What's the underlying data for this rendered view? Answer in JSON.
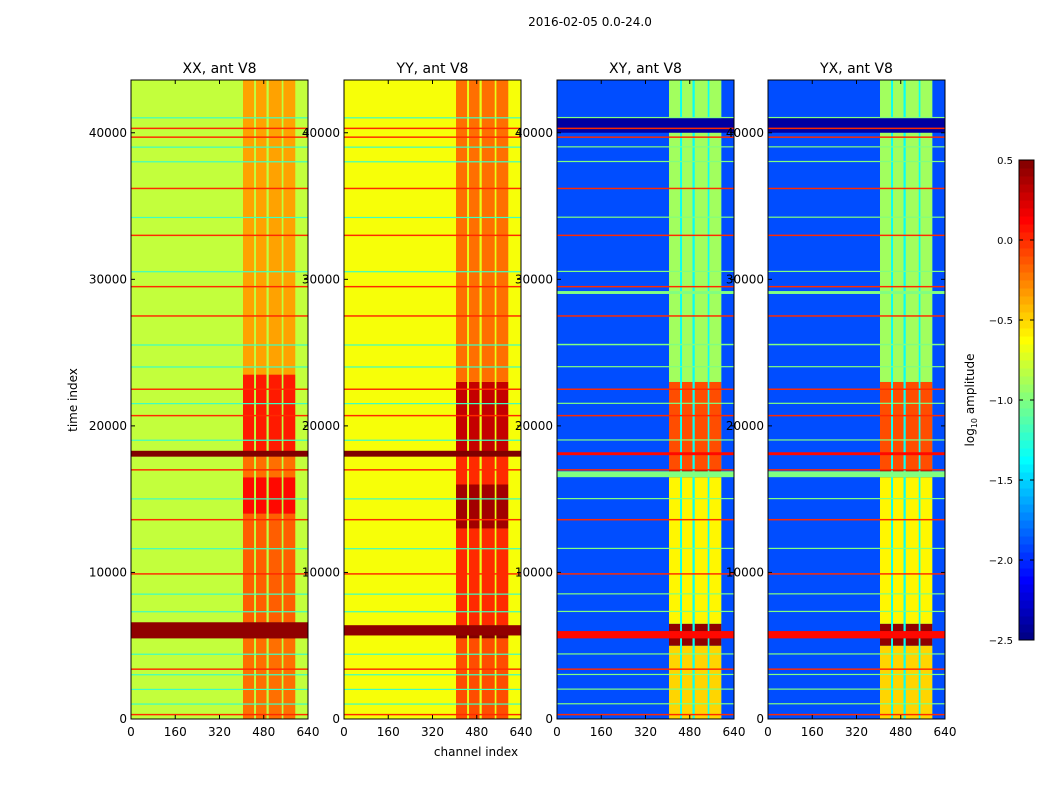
{
  "chart_data": {
    "type": "heatmap",
    "title": "2016-02-05 0.0-24.0",
    "xlabel": "channel index",
    "ylabel": "time index",
    "xlim": [
      0,
      640
    ],
    "ylim": [
      0,
      43600
    ],
    "xticks": [
      "0",
      "160",
      "320",
      "480",
      "640"
    ],
    "xtick_values": [
      0,
      160,
      320,
      480,
      640
    ],
    "yticks": [
      "0",
      "10000",
      "20000",
      "30000",
      "40000"
    ],
    "ytick_values": [
      0,
      10000,
      20000,
      30000,
      40000
    ],
    "colormap": "jet",
    "colorbar": {
      "label_prefix": "log",
      "label_sub": "10",
      "label_suffix": " amplitude",
      "range": [
        -2.5,
        0.5
      ],
      "ticks": [
        "0.5",
        "0.0",
        "−0.5",
        "−1.0",
        "−1.5",
        "−2.0",
        "−2.5"
      ],
      "tick_values": [
        0.5,
        0.0,
        -0.5,
        -1.0,
        -1.5,
        -2.0,
        -2.5
      ]
    },
    "hot_channel_ranges": [
      [
        405,
        445
      ],
      [
        452,
        490
      ],
      [
        498,
        545
      ],
      [
        551,
        594
      ]
    ],
    "panels": [
      {
        "title": "XX, ant V8",
        "background": -0.8,
        "gap": -0.82,
        "band_segments": [
          [
            0,
            5500,
            -0.2
          ],
          [
            5500,
            6600,
            0.5
          ],
          [
            6600,
            14000,
            -0.15
          ],
          [
            14000,
            16500,
            0.1
          ],
          [
            16500,
            18000,
            -0.2
          ],
          [
            18000,
            23500,
            0.05
          ],
          [
            23500,
            43600,
            -0.35
          ]
        ],
        "lines": [
          [
            5500,
            6600,
            0.45
          ],
          [
            17900,
            18300,
            0.5
          ],
          [
            250,
            350,
            0.0
          ],
          [
            3350,
            3450,
            0.0
          ],
          [
            9850,
            9950,
            0.0
          ],
          [
            13550,
            13650,
            0.0
          ],
          [
            16950,
            17050,
            0.0
          ],
          [
            20650,
            20750,
            0.0
          ],
          [
            22450,
            22550,
            0.0
          ],
          [
            27450,
            27550,
            0.0
          ],
          [
            29450,
            29550,
            0.0
          ],
          [
            32950,
            33050,
            0.0
          ],
          [
            36150,
            36250,
            0.0
          ],
          [
            39650,
            39750,
            0.0
          ],
          [
            40250,
            40350,
            0.0
          ],
          [
            1000,
            1060,
            -1.2
          ],
          [
            2000,
            2060,
            -1.2
          ],
          [
            3000,
            3060,
            -1.2
          ],
          [
            4400,
            4460,
            -1.2
          ],
          [
            7300,
            7360,
            -1.2
          ],
          [
            8500,
            8560,
            -1.2
          ],
          [
            11600,
            11660,
            -1.2
          ],
          [
            15000,
            15060,
            -1.2
          ],
          [
            19000,
            19060,
            -1.2
          ],
          [
            21500,
            21560,
            -1.2
          ],
          [
            24000,
            24060,
            -1.2
          ],
          [
            25500,
            25560,
            -1.2
          ],
          [
            30500,
            30560,
            -1.2
          ],
          [
            34200,
            34260,
            -1.2
          ],
          [
            38000,
            38060,
            -1.2
          ],
          [
            39000,
            39060,
            -1.2
          ],
          [
            41000,
            41060,
            -1.2
          ]
        ]
      },
      {
        "title": "YY, ant V8",
        "background": -0.65,
        "gap": -0.7,
        "band_segments": [
          [
            0,
            5500,
            -0.1
          ],
          [
            5500,
            6400,
            0.5
          ],
          [
            6400,
            13000,
            0.0
          ],
          [
            13000,
            16000,
            0.4
          ],
          [
            16000,
            18000,
            0.0
          ],
          [
            18000,
            23000,
            0.3
          ],
          [
            23000,
            43600,
            -0.2
          ]
        ],
        "lines": [
          [
            5700,
            6400,
            0.45
          ],
          [
            17900,
            18300,
            0.5
          ],
          [
            250,
            350,
            0.0
          ],
          [
            3350,
            3450,
            0.0
          ],
          [
            9850,
            9950,
            0.0
          ],
          [
            13550,
            13650,
            0.0
          ],
          [
            16950,
            17050,
            0.0
          ],
          [
            20650,
            20750,
            0.0
          ],
          [
            22450,
            22550,
            0.0
          ],
          [
            27450,
            27550,
            0.0
          ],
          [
            29450,
            29550,
            0.0
          ],
          [
            32950,
            33050,
            0.0
          ],
          [
            36150,
            36250,
            0.0
          ],
          [
            39650,
            39750,
            0.0
          ],
          [
            40250,
            40350,
            0.0
          ],
          [
            1000,
            1060,
            -1.2
          ],
          [
            2000,
            2060,
            -1.2
          ],
          [
            3000,
            3060,
            -1.2
          ],
          [
            4400,
            4460,
            -1.2
          ],
          [
            7300,
            7360,
            -1.2
          ],
          [
            8500,
            8560,
            -1.2
          ],
          [
            11600,
            11660,
            -1.2
          ],
          [
            15000,
            15060,
            -1.2
          ],
          [
            19000,
            19060,
            -1.2
          ],
          [
            21500,
            21560,
            -1.2
          ],
          [
            24000,
            24060,
            -1.2
          ],
          [
            25500,
            25560,
            -1.2
          ],
          [
            30500,
            30560,
            -1.2
          ],
          [
            34200,
            34260,
            -1.2
          ],
          [
            38000,
            38060,
            -1.2
          ],
          [
            39000,
            39060,
            -1.2
          ],
          [
            41000,
            41060,
            -1.2
          ]
        ]
      },
      {
        "title": "XY, ant V8",
        "background": -1.9,
        "gap": -1.35,
        "band_segments": [
          [
            0,
            5000,
            -0.5
          ],
          [
            5000,
            6500,
            0.45
          ],
          [
            6500,
            16500,
            -0.6
          ],
          [
            16500,
            17000,
            0.45
          ],
          [
            17000,
            23000,
            -0.1
          ],
          [
            23000,
            43600,
            -0.9
          ]
        ],
        "lines": [
          [
            5500,
            6000,
            0.1
          ],
          [
            40000,
            41000,
            -2.4
          ],
          [
            250,
            350,
            0.0
          ],
          [
            3350,
            3450,
            0.0
          ],
          [
            9850,
            9950,
            0.0
          ],
          [
            13550,
            13650,
            0.0
          ],
          [
            16950,
            17050,
            0.0
          ],
          [
            18000,
            18200,
            0.1
          ],
          [
            20650,
            20750,
            0.0
          ],
          [
            22450,
            22550,
            0.0
          ],
          [
            27450,
            27550,
            0.0
          ],
          [
            29450,
            29550,
            0.0
          ],
          [
            32950,
            33050,
            0.0
          ],
          [
            36150,
            36250,
            0.0
          ],
          [
            39650,
            39750,
            0.0
          ],
          [
            40250,
            40350,
            0.0
          ],
          [
            1000,
            1080,
            -1.0
          ],
          [
            2000,
            2080,
            -1.0
          ],
          [
            3000,
            3080,
            -1.0
          ],
          [
            4400,
            4480,
            -1.0
          ],
          [
            7300,
            7380,
            -1.0
          ],
          [
            8500,
            8580,
            -1.0
          ],
          [
            11600,
            11680,
            -1.0
          ],
          [
            15000,
            15080,
            -1.0
          ],
          [
            16500,
            16900,
            -1.0
          ],
          [
            19000,
            19080,
            -1.0
          ],
          [
            21500,
            21580,
            -1.0
          ],
          [
            24000,
            24080,
            -1.0
          ],
          [
            25500,
            25600,
            -1.0
          ],
          [
            29000,
            29200,
            -1.0
          ],
          [
            30500,
            30580,
            -1.0
          ],
          [
            34200,
            34280,
            -1.0
          ],
          [
            38000,
            38080,
            -1.0
          ],
          [
            39000,
            39080,
            -1.0
          ],
          [
            41000,
            41080,
            -1.0
          ]
        ]
      },
      {
        "title": "YX, ant V8",
        "background": -1.9,
        "gap": -1.35,
        "band_segments": [
          [
            0,
            5000,
            -0.5
          ],
          [
            5000,
            6500,
            0.45
          ],
          [
            6500,
            16500,
            -0.6
          ],
          [
            16500,
            17000,
            0.45
          ],
          [
            17000,
            23000,
            -0.1
          ],
          [
            23000,
            43600,
            -0.9
          ]
        ],
        "lines": [
          [
            5500,
            6000,
            0.1
          ],
          [
            40000,
            41000,
            -2.4
          ],
          [
            250,
            350,
            0.0
          ],
          [
            3350,
            3450,
            0.0
          ],
          [
            9850,
            9950,
            0.0
          ],
          [
            13550,
            13650,
            0.0
          ],
          [
            16950,
            17050,
            0.0
          ],
          [
            18000,
            18200,
            0.1
          ],
          [
            20650,
            20750,
            0.0
          ],
          [
            22450,
            22550,
            0.0
          ],
          [
            27450,
            27550,
            0.0
          ],
          [
            29450,
            29550,
            0.0
          ],
          [
            32950,
            33050,
            0.0
          ],
          [
            36150,
            36250,
            0.0
          ],
          [
            39650,
            39750,
            0.0
          ],
          [
            40250,
            40350,
            0.0
          ],
          [
            1000,
            1080,
            -1.0
          ],
          [
            2000,
            2080,
            -1.0
          ],
          [
            3000,
            3080,
            -1.0
          ],
          [
            4400,
            4480,
            -1.0
          ],
          [
            7300,
            7380,
            -1.0
          ],
          [
            8500,
            8580,
            -1.0
          ],
          [
            11600,
            11680,
            -1.0
          ],
          [
            15000,
            15080,
            -1.0
          ],
          [
            16500,
            16900,
            -1.0
          ],
          [
            19000,
            19080,
            -1.0
          ],
          [
            21500,
            21580,
            -1.0
          ],
          [
            24000,
            24080,
            -1.0
          ],
          [
            25500,
            25600,
            -1.0
          ],
          [
            29000,
            29200,
            -1.0
          ],
          [
            30500,
            30580,
            -1.0
          ],
          [
            34200,
            34280,
            -1.0
          ],
          [
            38000,
            38080,
            -1.0
          ],
          [
            39000,
            39080,
            -1.0
          ],
          [
            41000,
            41080,
            -1.0
          ]
        ]
      }
    ]
  }
}
